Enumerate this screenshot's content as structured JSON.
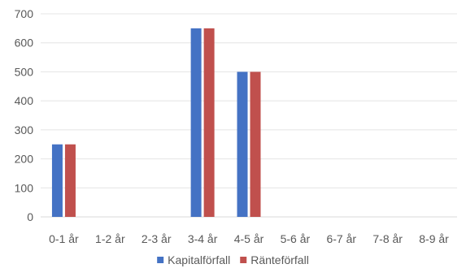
{
  "chart_data": {
    "type": "bar",
    "categories": [
      "0-1 år",
      "1-2 år",
      "2-3 år",
      "3-4 år",
      "4-5 år",
      "5-6 år",
      "6-7 år",
      "7-8 år",
      "8-9 år"
    ],
    "series": [
      {
        "name": "Kapitalförfall",
        "color": "#4472C4",
        "values": [
          250,
          0,
          0,
          650,
          500,
          0,
          0,
          0,
          0
        ]
      },
      {
        "name": "Ränteförfall",
        "color": "#C0504D",
        "values": [
          250,
          0,
          0,
          650,
          500,
          0,
          0,
          0,
          0
        ]
      }
    ],
    "ylim": [
      0,
      700
    ],
    "yticks": [
      0,
      100,
      200,
      300,
      400,
      500,
      600,
      700
    ],
    "grid": true,
    "legend": "bottom"
  }
}
